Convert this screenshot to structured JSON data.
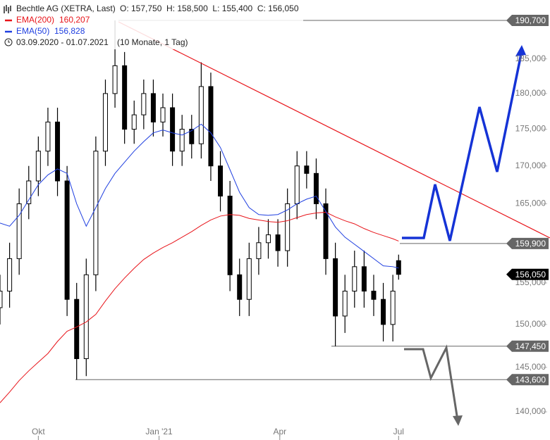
{
  "chart_data": {
    "type": "ohlc",
    "title": "Bechtle AG (XETRA, Last)",
    "quote": "O: 157,750  H: 158,500  L: 155,400  C: 156,050",
    "date_range": "03.09.2020 - 01.07.2021",
    "period": "(10 Monate, 1 Tag)",
    "log_scale": true,
    "x": [
      0,
      5,
      10,
      15,
      20,
      25,
      30,
      35,
      40,
      45,
      50,
      55,
      60,
      65,
      70,
      75,
      80,
      85,
      90,
      95,
      100,
      105,
      110,
      115,
      120,
      125,
      130,
      135,
      140,
      145,
      150,
      155,
      160,
      165,
      170,
      175,
      180,
      185,
      190,
      195,
      200,
      205,
      208
    ],
    "open": [
      152000,
      154000,
      158000,
      165000,
      168000,
      172000,
      176000,
      168000,
      153000,
      146000,
      156000,
      172000,
      180000,
      184000,
      175000,
      177000,
      180000,
      176000,
      178000,
      172000,
      175000,
      173000,
      181000,
      170000,
      166000,
      156000,
      153000,
      158000,
      160000,
      161000,
      159000,
      165000,
      170000,
      169000,
      165000,
      158000,
      151000,
      154000,
      157000,
      154000,
      153000,
      150000,
      157750
    ],
    "high": [
      156000,
      160000,
      167000,
      170000,
      174000,
      178000,
      178000,
      170000,
      155000,
      158000,
      174000,
      182000,
      190700,
      186000,
      179000,
      182000,
      182000,
      180000,
      180000,
      177000,
      177000,
      184500,
      183000,
      172000,
      168000,
      158000,
      160000,
      162000,
      163000,
      163000,
      167000,
      172000,
      172000,
      171000,
      167000,
      160000,
      156000,
      159000,
      159000,
      156000,
      155000,
      156000,
      158500
    ],
    "low": [
      150000,
      152000,
      156000,
      163000,
      166000,
      170000,
      166000,
      151000,
      143600,
      144000,
      154000,
      170000,
      178000,
      173000,
      173000,
      175000,
      174000,
      174000,
      170000,
      170000,
      171000,
      171000,
      168000,
      164000,
      154000,
      151000,
      151000,
      156000,
      158000,
      157000,
      157000,
      163000,
      167000,
      163000,
      156000,
      147450,
      149000,
      152000,
      152000,
      151000,
      148000,
      148000,
      155400
    ],
    "close": [
      154000,
      158000,
      165000,
      168000,
      172000,
      176000,
      168000,
      153000,
      146000,
      156000,
      172000,
      180000,
      184000,
      175000,
      177000,
      180000,
      176000,
      178000,
      172000,
      175000,
      173000,
      181000,
      170000,
      166000,
      156000,
      153000,
      158000,
      160000,
      161000,
      159000,
      165000,
      170000,
      169000,
      165000,
      158000,
      151000,
      154000,
      157000,
      154000,
      153000,
      150000,
      154000,
      156050
    ],
    "color": "#000000",
    "series": [
      {
        "name": "EMA(200)",
        "legend_value": "160,207",
        "color": "#e8141a",
        "values": [
          141000,
          142200,
          143500,
          144600,
          145600,
          146600,
          148000,
          149200,
          149700,
          150300,
          151200,
          152800,
          154300,
          155600,
          156800,
          157900,
          158700,
          159400,
          160000,
          160700,
          161400,
          162200,
          162900,
          163400,
          163600,
          163500,
          163100,
          162900,
          162700,
          162600,
          162800,
          163200,
          163600,
          163800,
          163900,
          163300,
          162800,
          162400,
          161800,
          161300,
          160900,
          160500,
          160207
        ]
      },
      {
        "name": "EMA(50)",
        "legend_value": "156,828",
        "color": "#1f3fe0",
        "values": [
          162500,
          162100,
          163500,
          165500,
          167500,
          168800,
          169600,
          169000,
          165000,
          162100,
          164500,
          167000,
          169000,
          170500,
          172000,
          173300,
          174500,
          174900,
          174500,
          174200,
          174800,
          175700,
          174500,
          172500,
          169500,
          166500,
          164500,
          163600,
          163500,
          163600,
          164200,
          165000,
          165600,
          166000,
          164000,
          162000,
          160700,
          159800,
          158900,
          158000,
          157100,
          157000,
          156828
        ]
      }
    ],
    "xlim": [
      0,
      287
    ],
    "xticks": [
      {
        "value": 20,
        "label": "Okt"
      },
      {
        "value": 83,
        "label": "Jan '21"
      },
      {
        "value": 146,
        "label": "Apr"
      },
      {
        "value": 208,
        "label": "Jul"
      }
    ],
    "ylim": [
      138450,
      193800
    ],
    "yticks": [
      {
        "value": 140000,
        "label": "140,000"
      },
      {
        "value": 145000,
        "label": "145,000"
      },
      {
        "value": 150000,
        "label": "150,000"
      },
      {
        "value": 155000,
        "label": "155,000"
      },
      {
        "value": 165000,
        "label": "165,000"
      },
      {
        "value": 170000,
        "label": "170,000"
      },
      {
        "value": 175000,
        "label": "175,000"
      },
      {
        "value": 180000,
        "label": "180,000"
      },
      {
        "value": 185000,
        "label": "185,000"
      }
    ],
    "levels": [
      {
        "value": 190700,
        "label": "190,700"
      },
      {
        "value": 159900,
        "label": "159,900"
      },
      {
        "value": 156050,
        "label": "156,050"
      },
      {
        "value": 147450,
        "label": "147,450"
      },
      {
        "value": 143600,
        "label": "143,600"
      }
    ]
  }
}
